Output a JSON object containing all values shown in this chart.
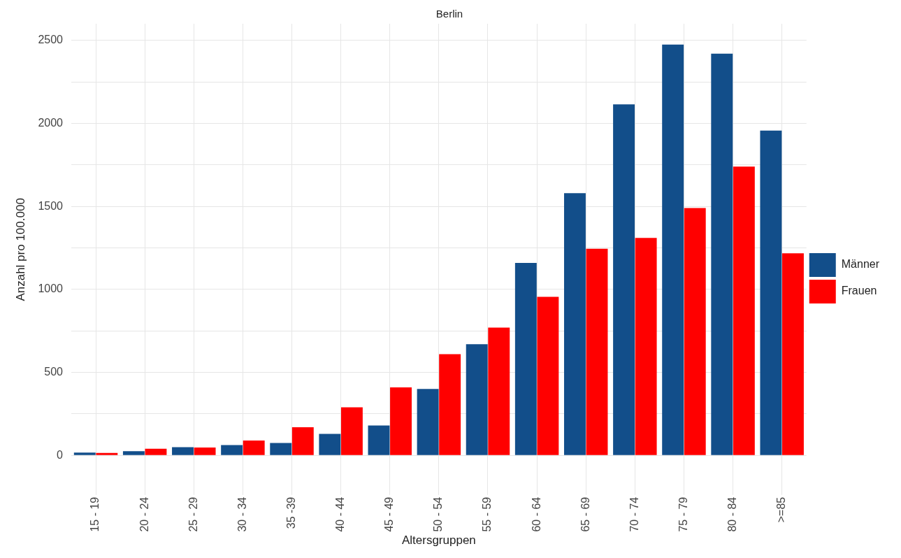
{
  "chart_data": {
    "type": "bar",
    "title": "Berlin",
    "xlabel": "Altersgruppen",
    "ylabel": "Anzahl pro 100.000",
    "categories": [
      "15 - 19",
      "20 - 24",
      "25 - 29",
      "30 - 34",
      "35 -39",
      "40 - 44",
      "45 - 49",
      "50 - 54",
      "55 - 59",
      "60 - 64",
      "65 - 69",
      "70 - 74",
      "75 - 79",
      "80 - 84",
      ">=85"
    ],
    "series": [
      {
        "name": "Männer",
        "color": "#124e8a",
        "values": [
          17,
          25,
          50,
          62,
          75,
          130,
          180,
          400,
          670,
          1160,
          1580,
          2115,
          2475,
          2420,
          1957
        ]
      },
      {
        "name": "Frauen",
        "color": "#ff0000",
        "values": [
          15,
          40,
          48,
          90,
          170,
          290,
          410,
          610,
          770,
          955,
          1245,
          1310,
          1490,
          1740,
          1217
        ]
      }
    ],
    "ylim": [
      -120,
      2600
    ],
    "yticks": [
      0,
      {
        "value": 250,
        "label": null
      },
      500,
      {
        "value": 750,
        "label": null
      },
      1000,
      {
        "value": 1250,
        "label": null
      },
      1500,
      {
        "value": 1750,
        "label": null
      },
      2000,
      {
        "value": 2250,
        "label": null
      },
      2500
    ],
    "grid": true,
    "legend": "right"
  }
}
